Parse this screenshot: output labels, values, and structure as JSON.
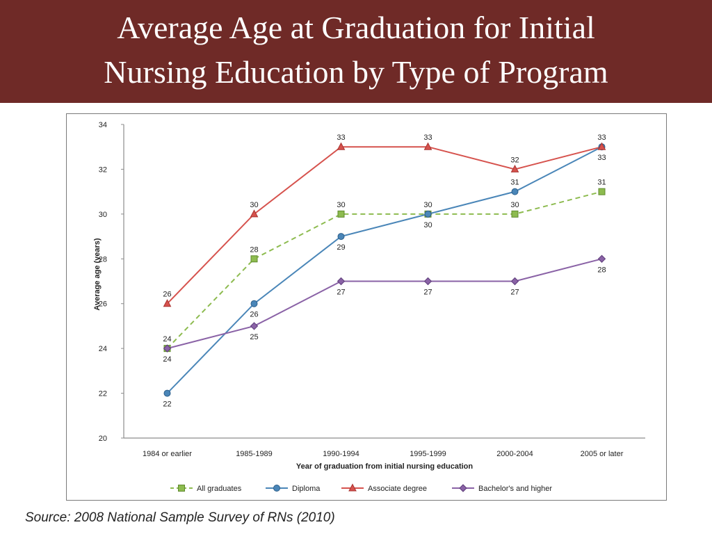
{
  "slide": {
    "title_line1": "Average Age at Graduation for Initial",
    "title_line2": "Nursing Education by Type of Program",
    "source": "Source:  2008 National Sample Survey of RNs (2010)"
  },
  "colors": {
    "title_bar": "#6f2a27",
    "all_graduates": "#8dbb4f",
    "diploma": "#4a86b8",
    "associate": "#d6524d",
    "bachelors": "#8a62a6"
  },
  "chart_data": {
    "type": "line",
    "categories": [
      "1984 or earlier",
      "1985-1989",
      "1990-1994",
      "1995-1999",
      "2000-2004",
      "2005 or later"
    ],
    "xlabel": "Year of graduation from initial nursing education",
    "ylabel": "Average age (years)",
    "ylim": [
      20,
      34
    ],
    "yticks": [
      20,
      22,
      24,
      26,
      28,
      30,
      32,
      34
    ],
    "grid": false,
    "legend_position": "bottom",
    "series": [
      {
        "name": "All graduates",
        "values": [
          24,
          28,
          30,
          30,
          30,
          31
        ],
        "style": "dashed",
        "marker": "square",
        "color": "#8dbb4f"
      },
      {
        "name": "Diploma",
        "values": [
          22,
          26,
          29,
          30,
          31,
          33
        ],
        "style": "solid",
        "marker": "circle",
        "color": "#4a86b8"
      },
      {
        "name": "Associate degree",
        "values": [
          26,
          30,
          33,
          33,
          32,
          33
        ],
        "style": "solid",
        "marker": "triangle",
        "color": "#d6524d"
      },
      {
        "name": "Bachelor's and higher",
        "values": [
          24,
          25,
          27,
          27,
          27,
          28
        ],
        "style": "solid",
        "marker": "diamond",
        "color": "#8a62a6"
      }
    ]
  }
}
